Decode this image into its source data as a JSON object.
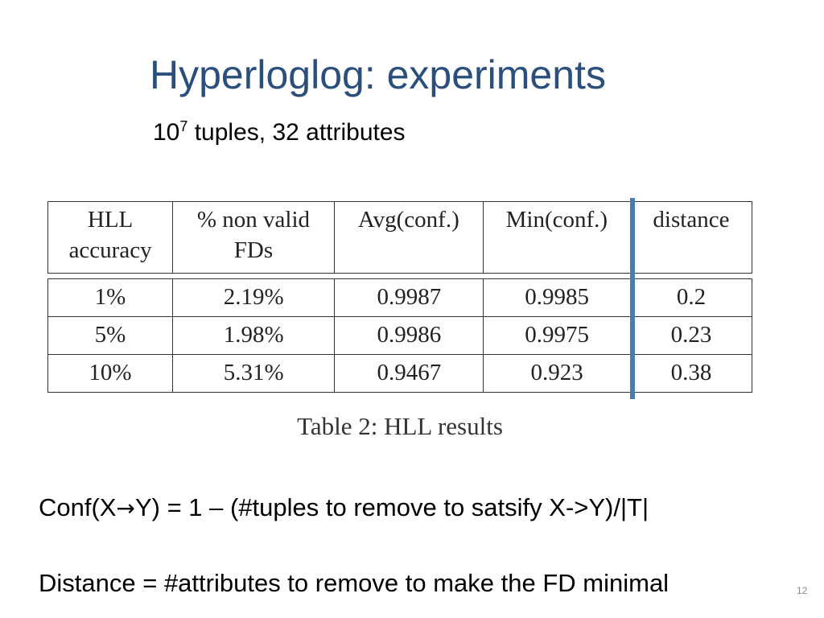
{
  "slide": {
    "title": "Hyperloglog: experiments",
    "subtitle_base": "10",
    "subtitle_exponent": "7",
    "subtitle_rest": " tuples, 32 attributes",
    "page_number": "12"
  },
  "table": {
    "headers": [
      [
        "HLL",
        "accuracy"
      ],
      [
        "% non valid",
        "FDs"
      ],
      [
        "Avg(conf.)",
        ""
      ],
      [
        "Min(conf.)",
        ""
      ],
      [
        "distance",
        ""
      ]
    ],
    "rows": [
      [
        "1%",
        "2.19%",
        "0.9987",
        "0.9985",
        "0.2"
      ],
      [
        "5%",
        "1.98%",
        "0.9986",
        "0.9975",
        "0.23"
      ],
      [
        "10%",
        "5.31%",
        "0.9467",
        "0.923",
        "0.38"
      ]
    ],
    "caption": "Table 2:  HLL results"
  },
  "notes": {
    "conf_prefix": "Conf(X",
    "conf_arrow": "→",
    "conf_suffix": "Y) = 1 – (#tuples to remove to satsify X->Y)/|T|",
    "distance": "Distance = #attributes to remove to make the FD minimal"
  },
  "colors": {
    "title": "#2a4f7c",
    "highlight_bar": "#4a7cb6"
  }
}
